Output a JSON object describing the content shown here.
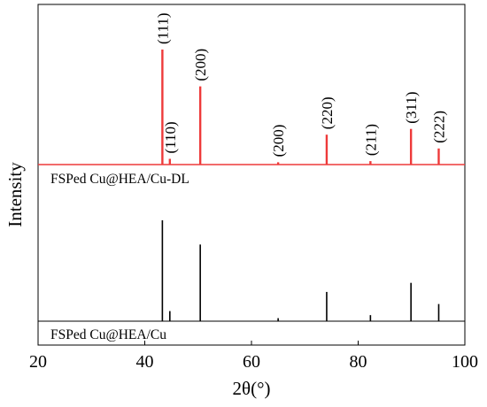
{
  "chart_data": {
    "type": "bar",
    "xlabel": "2θ(°)",
    "ylabel": "Intensity",
    "xlim": [
      20,
      100
    ],
    "xticks": [
      20,
      40,
      60,
      80,
      100
    ],
    "colors": {
      "top": "#ee3a3a",
      "bottom": "#000000",
      "axis": "#000000"
    },
    "series": [
      {
        "name": "FSPed Cu@HEA/Cu-DL",
        "color": "#ee3a3a",
        "x": [
          43.3,
          44.7,
          50.4,
          65.0,
          74.1,
          82.3,
          89.9,
          95.1
        ],
        "values": [
          100,
          5,
          68,
          2,
          26,
          3,
          31,
          14
        ],
        "labels": [
          "(111)",
          "(110)",
          "(200)",
          "(200)",
          "(220)",
          "(211)",
          "(311)",
          "(222)"
        ]
      },
      {
        "name": "FSPed Cu@HEA/Cu",
        "color": "#000000",
        "x": [
          43.3,
          44.7,
          50.4,
          65.0,
          74.1,
          82.3,
          89.9,
          95.1
        ],
        "values": [
          100,
          10,
          76,
          3,
          29,
          6,
          38,
          17
        ]
      }
    ]
  }
}
